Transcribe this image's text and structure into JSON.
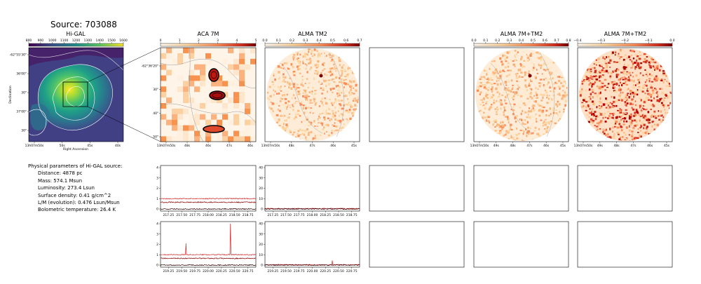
{
  "figure": {
    "title": "Source: 703088"
  },
  "panels": {
    "higal": {
      "title": "Hi-GAL",
      "colorbar_ticks": [
        "800",
        "900",
        "1000",
        "1100",
        "1200",
        "1300",
        "1400",
        "1500",
        "1600"
      ],
      "xticks": [
        "13h07m50s",
        "50s",
        "45s",
        "40s"
      ],
      "yticks": [
        "-62°55'30\"",
        "36'00\"",
        "30\"",
        "37'00\"",
        "30\""
      ],
      "xlabel": "Right Ascension",
      "ylabel": "Declination"
    },
    "aca7m": {
      "title": "ACA 7M",
      "colorbar_ticks": [
        "0",
        "1",
        "2",
        "3",
        "4",
        "5"
      ],
      "xticks": [
        "13h07m50s",
        "48s",
        "46s",
        "47s",
        "46s"
      ],
      "yticks": [
        "-62°36'20\"",
        "30\"",
        "40\"",
        "50\""
      ]
    },
    "almatm2": {
      "title": "ALMA TM2",
      "colorbar_ticks": [
        "0.0",
        "0.1",
        "0.2",
        "0.3",
        "0.4",
        "0.5",
        "0.6",
        "0.7"
      ],
      "xticks": [
        "13h07m50s",
        "48s",
        "47s",
        "46s",
        "45s"
      ]
    },
    "alma7mtm2_a": {
      "title": "ALMA 7M+TM2",
      "colorbar_ticks": [
        "0.0",
        "0.1",
        "0.2",
        "0.3",
        "0.4",
        "0.5",
        "0.6",
        "0.7",
        "0.8"
      ],
      "xticks": [
        "13h07m50s",
        "49s",
        "48s",
        "47s",
        "46s",
        "45s"
      ]
    },
    "alma7mtm2_b": {
      "title": "ALMA 7M+TM2",
      "colorbar_ticks": [
        "−0.4",
        "−0.3",
        "−0.2",
        "−0.1",
        "0.0"
      ],
      "xticks": [
        "13h07m50s",
        "49s",
        "48s",
        "47s",
        "46s",
        "45s"
      ]
    }
  },
  "info": {
    "heading": "Physical parameters of Hi-GAL source:",
    "lines": [
      "Distance: 4878 pc",
      "Mass: 574.1 Msun",
      "Luminosity: 273.4 Lsun",
      "Surface density: 0.41 g/cm^2",
      "L/M (evolution): 0.476 Lsun/Msun",
      "Bolometric temperature: 26.4 K"
    ]
  },
  "chart_data": [
    {
      "type": "line",
      "panel": "spectrum-aca-row1",
      "x_range": [
        217.1,
        218.9
      ],
      "xticks": [
        "217.25",
        "217.50",
        "217.75",
        "218.00",
        "218.25",
        "218.50",
        "218.75"
      ],
      "ylim": [
        0,
        4
      ],
      "yticks": [
        "0",
        "1",
        "2",
        "3",
        "4"
      ],
      "series": [
        {
          "color": "#d62728",
          "baseline": 1.0
        },
        {
          "color": "#8b0000",
          "baseline": 0.65
        },
        {
          "color": "#2a0000",
          "baseline": 0.0
        }
      ]
    },
    {
      "type": "line",
      "panel": "spectrum-alma-row1",
      "x_range": [
        217.1,
        218.9
      ],
      "xticks": [
        "217.25",
        "217.50",
        "217.75",
        "218.00",
        "218.25",
        "218.50",
        "218.75"
      ],
      "ylim": [
        0,
        40
      ],
      "yticks": [
        "0",
        "10",
        "20",
        "30",
        "40"
      ],
      "series": [
        {
          "color": "#d62728",
          "baseline": 0.3
        },
        {
          "color": "#2a0000",
          "baseline": 0.0
        }
      ]
    },
    {
      "type": "line",
      "panel": "spectrum-aca-row2",
      "x_range": [
        219.1,
        220.9
      ],
      "xticks": [
        "219.25",
        "219.50",
        "219.75",
        "220.00",
        "220.25",
        "220.50",
        "220.75"
      ],
      "ylim": [
        0,
        4
      ],
      "yticks": [
        "0",
        "1",
        "2",
        "3",
        "4"
      ],
      "series": [
        {
          "color": "#d62728",
          "baseline": 1.0,
          "peaks": [
            [
              219.58,
              2.1
            ],
            [
              220.42,
              4.0
            ]
          ]
        },
        {
          "color": "#8b0000",
          "baseline": 0.65
        },
        {
          "color": "#2a0000",
          "baseline": 0.0
        }
      ]
    },
    {
      "type": "line",
      "panel": "spectrum-alma-row2",
      "x_range": [
        219.1,
        220.9
      ],
      "xticks": [
        "219.25",
        "219.50",
        "219.75",
        "220.00",
        "220.25",
        "220.50",
        "220.75"
      ],
      "ylim": [
        0,
        40
      ],
      "yticks": [
        "0",
        "10",
        "20",
        "30",
        "40"
      ],
      "series": [
        {
          "color": "#d62728",
          "baseline": 0.3,
          "peaks": [
            [
              220.38,
              4.5
            ]
          ]
        },
        {
          "color": "#2a0000",
          "baseline": 0.0
        }
      ]
    }
  ]
}
